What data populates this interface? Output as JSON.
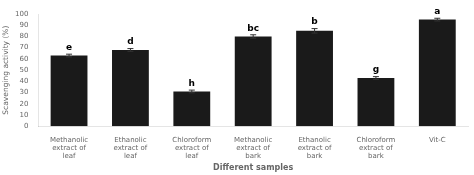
{
  "chart_data": {
    "type": "bar",
    "categories": [
      "Methanolic\nextract of\nleaf",
      "Ethanolic\nextract of\nleaf",
      "Chloroform\nextract of\nleaf",
      "Methanolic\nextract of\nbark",
      "Ethanolic\nextract of\nbark",
      "Chloroform\nextract of\nbark",
      "Vit-C"
    ],
    "values": [
      63,
      68,
      31,
      80,
      85,
      43,
      95
    ],
    "errors": [
      1.2,
      1.2,
      1.2,
      1.5,
      2.0,
      1.2,
      1.2
    ],
    "annotations": [
      "e",
      "d",
      "h",
      "bc",
      "b",
      "g",
      "a"
    ],
    "color": "#1a1a1a",
    "ylabel": "Scavenging activity (%)",
    "xlabel": "Different samples",
    "ylim": [
      0,
      100
    ],
    "yticks": [
      0,
      10,
      20,
      30,
      40,
      50,
      60,
      70,
      80,
      90,
      100
    ],
    "grid": false
  }
}
